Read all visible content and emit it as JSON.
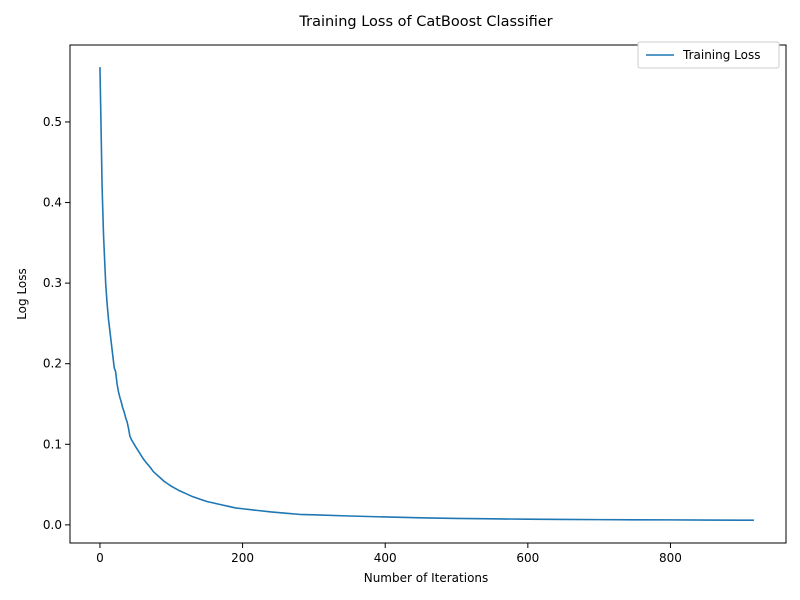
{
  "chart_data": {
    "type": "line",
    "title": "Training Loss of CatBoost Classifier",
    "xlabel": "Number of Iterations",
    "ylabel": "Log Loss",
    "xlim": [
      -42,
      962
    ],
    "ylim": [
      -0.0225,
      0.5955
    ],
    "xticks": [
      0,
      200,
      400,
      600,
      800
    ],
    "xtick_labels": [
      "0",
      "200",
      "400",
      "600",
      "800"
    ],
    "yticks": [
      0.0,
      0.1,
      0.2,
      0.3,
      0.4,
      0.5
    ],
    "ytick_labels": [
      "0.0",
      "0.1",
      "0.2",
      "0.3",
      "0.4",
      "0.5"
    ],
    "grid": false,
    "legend": "top-right",
    "series": [
      {
        "name": "Training Loss",
        "color": "#1f77b4",
        "x": [
          0,
          1,
          2,
          3,
          4,
          5,
          6,
          8,
          10,
          12,
          14,
          16,
          18,
          20,
          22,
          24,
          26,
          28,
          30,
          32,
          34,
          36,
          38,
          40,
          42,
          44,
          46,
          48,
          50,
          55,
          60,
          65,
          70,
          75,
          80,
          85,
          90,
          95,
          100,
          110,
          120,
          130,
          140,
          150,
          160,
          170,
          180,
          190,
          200,
          220,
          240,
          260,
          280,
          300,
          350,
          400,
          450,
          500,
          550,
          600,
          650,
          700,
          750,
          800,
          850,
          900,
          917
        ],
        "y": [
          0.568,
          0.52,
          0.47,
          0.42,
          0.39,
          0.36,
          0.34,
          0.3,
          0.275,
          0.255,
          0.24,
          0.225,
          0.21,
          0.195,
          0.19,
          0.175,
          0.165,
          0.158,
          0.152,
          0.145,
          0.14,
          0.133,
          0.128,
          0.12,
          0.11,
          0.106,
          0.103,
          0.1,
          0.097,
          0.09,
          0.083,
          0.077,
          0.072,
          0.066,
          0.062,
          0.058,
          0.054,
          0.051,
          0.048,
          0.043,
          0.039,
          0.035,
          0.032,
          0.029,
          0.027,
          0.025,
          0.023,
          0.021,
          0.02,
          0.018,
          0.016,
          0.0145,
          0.013,
          0.0125,
          0.011,
          0.0098,
          0.0088,
          0.008,
          0.0075,
          0.007,
          0.0067,
          0.0065,
          0.0063,
          0.0062,
          0.006,
          0.0058,
          0.0058
        ]
      }
    ]
  }
}
